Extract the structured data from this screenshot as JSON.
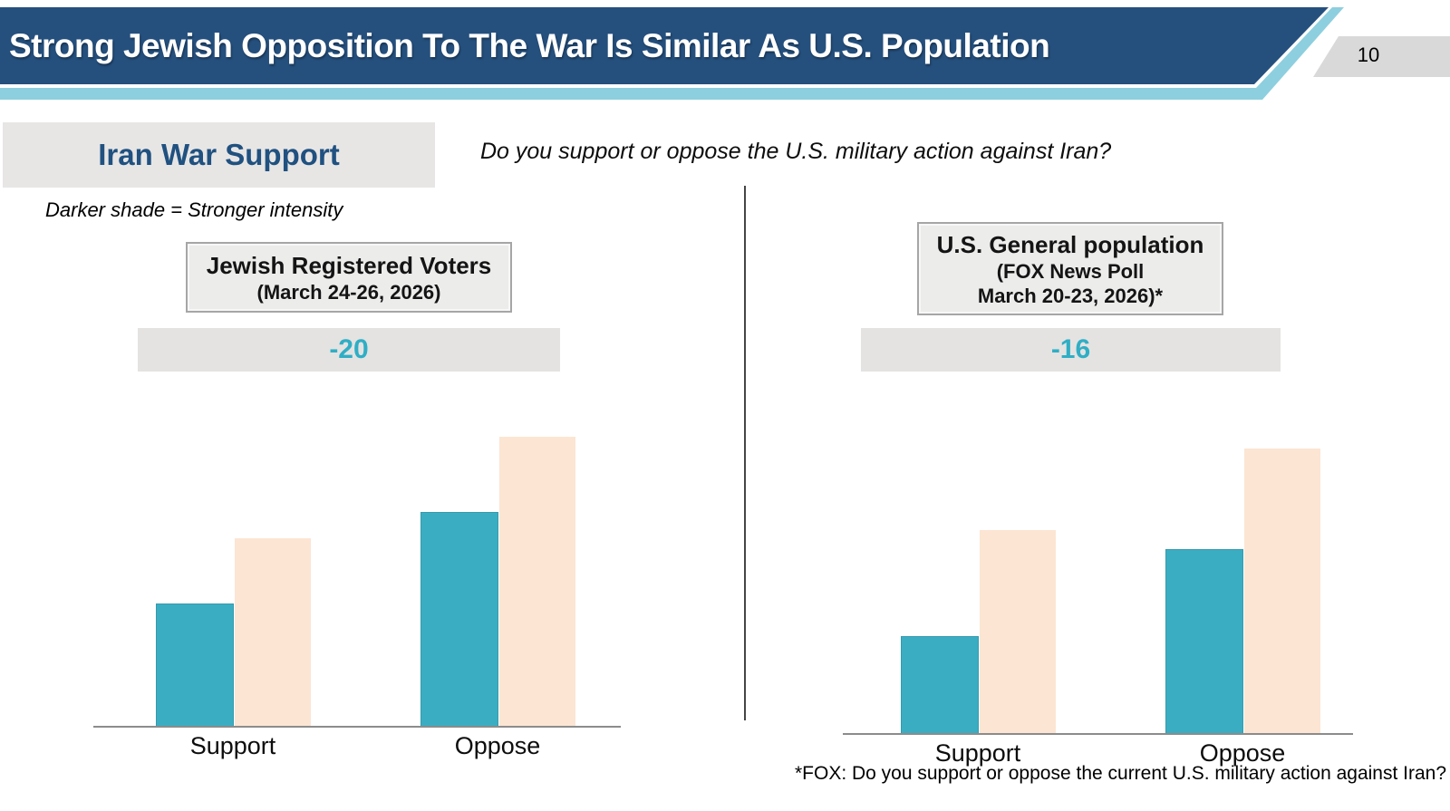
{
  "slide": {
    "title": "Strong Jewish Opposition To The War Is Similar As U.S. Population",
    "page_number": "10",
    "section_label": "Iran War Support",
    "question": "Do you support or oppose the U.S. military action against Iran?",
    "legend_note": "Darker shade = Stronger intensity",
    "footnote": "*FOX: Do you support or oppose the current U.S. military action against Iran?"
  },
  "colors": {
    "header-blue": "#25507E",
    "accent-teal": "#8DCFDE",
    "bar-strong": "#3BADC2",
    "bar-total": "#FCE5D3",
    "net-score": "#2FAEC5",
    "band-gray": "#E4E3E2",
    "box-fill": "#ECECEB",
    "box-border": "#A6A6A6",
    "page-tab": "#D9D9D9",
    "section-text": "#205180",
    "axis-gray": "#8C8C8C"
  },
  "chart_data": [
    {
      "type": "bar",
      "title": "Jewish Registered Voters",
      "subtitle_lines": [
        "(March 24-26, 2026)"
      ],
      "net_score": "-20",
      "categories": [
        "Support",
        "Oppose"
      ],
      "series": [
        {
          "name": "Strongly (darker shade)",
          "values": [
            24,
            42
          ]
        },
        {
          "name": "Total (lighter shade)",
          "values": [
            37,
            57
          ]
        }
      ],
      "ylim": [
        0,
        70
      ],
      "value_labels": "none",
      "grid": false,
      "legend": "none (shade note above chart)"
    },
    {
      "type": "bar",
      "title": "U.S. General population",
      "subtitle_lines": [
        "(FOX News Poll",
        "March 20-23, 2026)*"
      ],
      "net_score": "-16",
      "categories": [
        "Support",
        "Oppose"
      ],
      "series": [
        {
          "name": "Strongly (darker shade)",
          "values": [
            19,
            36
          ]
        },
        {
          "name": "Total (lighter shade)",
          "values": [
            40,
            56
          ]
        }
      ],
      "ylim": [
        0,
        70
      ],
      "value_labels": "none",
      "grid": false,
      "legend": "none (shade note above chart)"
    }
  ]
}
